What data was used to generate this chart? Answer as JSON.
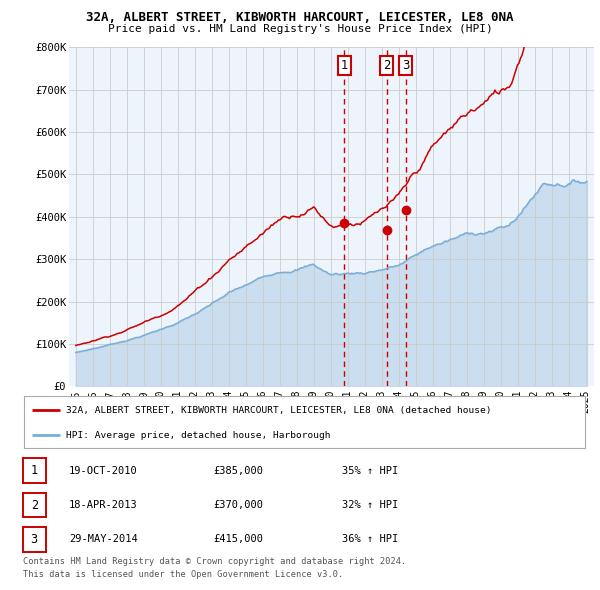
{
  "title_line1": "32A, ALBERT STREET, KIBWORTH HARCOURT, LEICESTER, LE8 0NA",
  "title_line2": "Price paid vs. HM Land Registry's House Price Index (HPI)",
  "y_label_ticks": [
    "£0",
    "£100K",
    "£200K",
    "£300K",
    "£400K",
    "£500K",
    "£600K",
    "£700K",
    "£800K"
  ],
  "y_values": [
    0,
    100000,
    200000,
    300000,
    400000,
    500000,
    600000,
    700000,
    800000
  ],
  "x_tick_years": [
    1995,
    1996,
    1997,
    1998,
    1999,
    2000,
    2001,
    2002,
    2003,
    2004,
    2005,
    2006,
    2007,
    2008,
    2009,
    2010,
    2011,
    2012,
    2013,
    2014,
    2015,
    2016,
    2017,
    2018,
    2019,
    2020,
    2021,
    2022,
    2023,
    2024,
    2025
  ],
  "sale_color": "#cc0000",
  "hpi_color": "#7aaed6",
  "hpi_fill_color": "#ddeeff",
  "vline_color": "#cc0000",
  "sales": [
    {
      "date_num": 2010.8,
      "price": 385000,
      "label": "1"
    },
    {
      "date_num": 2013.3,
      "price": 370000,
      "label": "2"
    },
    {
      "date_num": 2014.42,
      "price": 415000,
      "label": "3"
    }
  ],
  "legend_sale_label": "32A, ALBERT STREET, KIBWORTH HARCOURT, LEICESTER, LE8 0NA (detached house)",
  "legend_hpi_label": "HPI: Average price, detached house, Harborough",
  "table_rows": [
    {
      "num": "1",
      "date": "19-OCT-2010",
      "price": "£385,000",
      "change": "35% ↑ HPI"
    },
    {
      "num": "2",
      "date": "18-APR-2013",
      "price": "£370,000",
      "change": "32% ↑ HPI"
    },
    {
      "num": "3",
      "date": "29-MAY-2014",
      "price": "£415,000",
      "change": "36% ↑ HPI"
    }
  ],
  "footer_line1": "Contains HM Land Registry data © Crown copyright and database right 2024.",
  "footer_line2": "This data is licensed under the Open Government Licence v3.0.",
  "bg_color": "#ffffff",
  "grid_color": "#cccccc",
  "chart_bg": "#eef4fb"
}
